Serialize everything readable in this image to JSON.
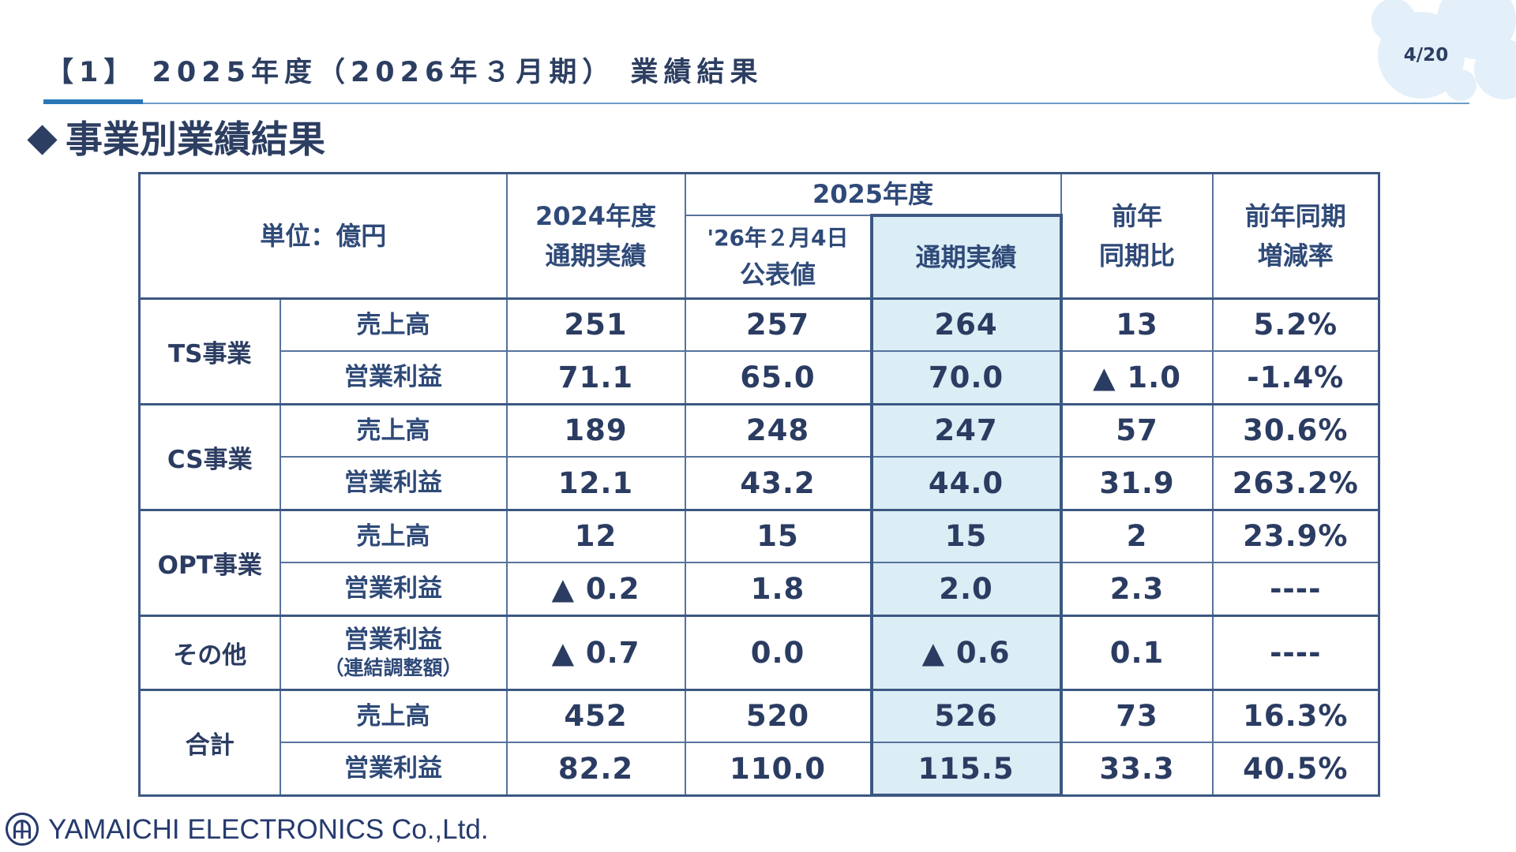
{
  "slide": {
    "page_number": "4/20",
    "title": "【1】 2025年度（2026年３月期） 業績結果",
    "section_heading": "事業別業績結果",
    "bullet_icon": "diamond-bullet-icon"
  },
  "colors": {
    "title_text": "#2c3e61",
    "accent_blue": "#2a78b8",
    "rule_blue": "#6b9dcb",
    "table_border": "#3c5883",
    "table_inner_border": "#56739c",
    "header_text": "#2f4a78",
    "value_text": "#2b3c62",
    "highlight_fill": "#dbedf5",
    "decor_blob": "#e3eff9",
    "logo_navy": "#263a6d"
  },
  "table": {
    "header": {
      "unit": "単位：億円",
      "fy2024": [
        "2024年度",
        "通期実績"
      ],
      "fy2025": "2025年度",
      "fy2025_forecast": [
        "'26年２月4日",
        "公表値"
      ],
      "fy2025_actual": "通期実績",
      "yoy_change": [
        "前年",
        "同期比"
      ],
      "yoy_rate": [
        "前年同期",
        "増減率"
      ]
    },
    "segments": [
      {
        "name": "TS事業",
        "rows": [
          {
            "item": "売上高",
            "fy2024": "251",
            "forecast": "257",
            "fy2025": "264",
            "yoy_change": "13",
            "yoy_rate": "5.2%"
          },
          {
            "item": "営業利益",
            "fy2024": "71.1",
            "forecast": "65.0",
            "fy2025": "70.0",
            "yoy_change": "▲ 1.0",
            "yoy_rate": "-1.4%"
          }
        ]
      },
      {
        "name": "CS事業",
        "rows": [
          {
            "item": "売上高",
            "fy2024": "189",
            "forecast": "248",
            "fy2025": "247",
            "yoy_change": "57",
            "yoy_rate": "30.6%"
          },
          {
            "item": "営業利益",
            "fy2024": "12.1",
            "forecast": "43.2",
            "fy2025": "44.0",
            "yoy_change": "31.9",
            "yoy_rate": "263.2%"
          }
        ]
      },
      {
        "name": "OPT事業",
        "rows": [
          {
            "item": "売上高",
            "fy2024": "12",
            "forecast": "15",
            "fy2025": "15",
            "yoy_change": "2",
            "yoy_rate": "23.9%"
          },
          {
            "item": "営業利益",
            "fy2024": "▲ 0.2",
            "forecast": "1.8",
            "fy2025": "2.0",
            "yoy_change": "2.3",
            "yoy_rate": "----"
          }
        ]
      },
      {
        "name": "その他",
        "rows": [
          {
            "item": "営業利益",
            "item_note": "（連結調整額）",
            "fy2024": "▲ 0.7",
            "forecast": "0.0",
            "fy2025": "▲ 0.6",
            "yoy_change": "0.1",
            "yoy_rate": "----"
          }
        ]
      },
      {
        "name": "合計",
        "rows": [
          {
            "item": "売上高",
            "fy2024": "452",
            "forecast": "520",
            "fy2025": "526",
            "yoy_change": "73",
            "yoy_rate": "16.3%"
          },
          {
            "item": "営業利益",
            "fy2024": "82.2",
            "forecast": "110.0",
            "fy2025": "115.5",
            "yoy_change": "33.3",
            "yoy_rate": "40.5%"
          }
        ]
      }
    ]
  },
  "footer": {
    "logo_icon": "yamaichi-logo-icon",
    "company_name": "YAMAICHI ELECTRONICS Co.,Ltd."
  }
}
